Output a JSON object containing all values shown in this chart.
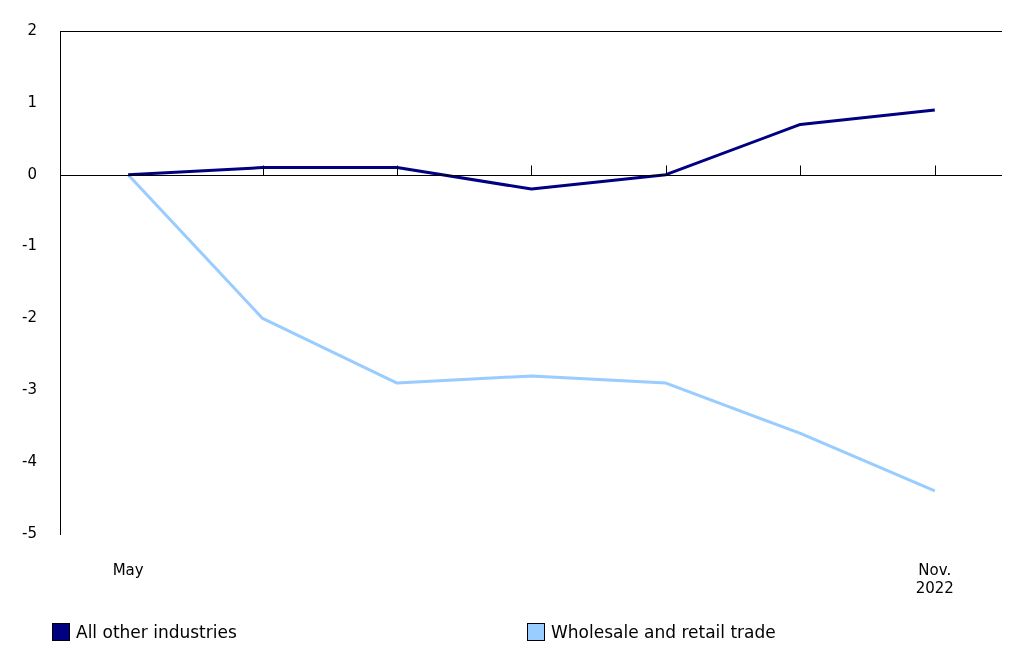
{
  "chart_data": {
    "type": "line",
    "categories": [
      "May",
      null,
      null,
      null,
      null,
      null,
      "Nov. 2022"
    ],
    "series": [
      {
        "name": "All other industries",
        "color": "#000080",
        "values": [
          0,
          0.1,
          0.1,
          -0.2,
          0,
          0.7,
          0.9
        ]
      },
      {
        "name": "Wholesale and retail trade",
        "color": "#99ccff",
        "values": [
          0,
          -2,
          -2.9,
          -2.8,
          -2.9,
          -3.6,
          -4.4
        ]
      }
    ],
    "ylim": [
      -5,
      2
    ],
    "yticks": [
      -5,
      -4,
      -3,
      -2,
      -1,
      0,
      1,
      2
    ],
    "grid": false,
    "legend": "bottom",
    "marker": "none",
    "line_style": "solid",
    "ref_lines": [
      {
        "axis": "y",
        "value": 0,
        "color": "#000000"
      }
    ]
  }
}
